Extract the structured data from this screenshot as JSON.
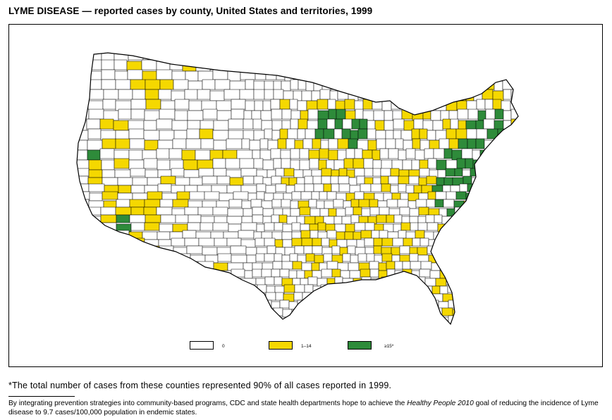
{
  "title": "LYME DISEASE — reported cases by county, United States and territories, 1999",
  "legend": [
    {
      "label": "0",
      "color": "#ffffff"
    },
    {
      "label": "1–14",
      "color": "#f5d800"
    },
    {
      "label": "≥15*",
      "color": "#2e8b3a"
    }
  ],
  "footnote": "*The total number of cases from these counties represented 90% of all cases reported in 1999.",
  "goal": {
    "part1": "By integrating prevention strategies into community-based programs, CDC and state health departments hope to achieve the ",
    "emphasis": "Healthy People 2010",
    "part2": " goal of reducing the incidence of Lyme disease to 9.7 cases/100,000 population in endemic states."
  },
  "colors": {
    "zero": "#ffffff",
    "low": "#f5d800",
    "high": "#2e8b3a",
    "border": "#000000"
  }
}
